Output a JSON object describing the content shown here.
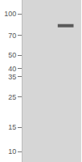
{
  "chart_data": {
    "type": "blot",
    "values": [
      82
    ],
    "color": "#5a5a5a",
    "ylim": [
      8.4,
      126
    ],
    "yticks": [
      10,
      15,
      25,
      35,
      40,
      50,
      70,
      100
    ],
    "log": "y",
    "grid": false,
    "tick_labels": "y"
  }
}
